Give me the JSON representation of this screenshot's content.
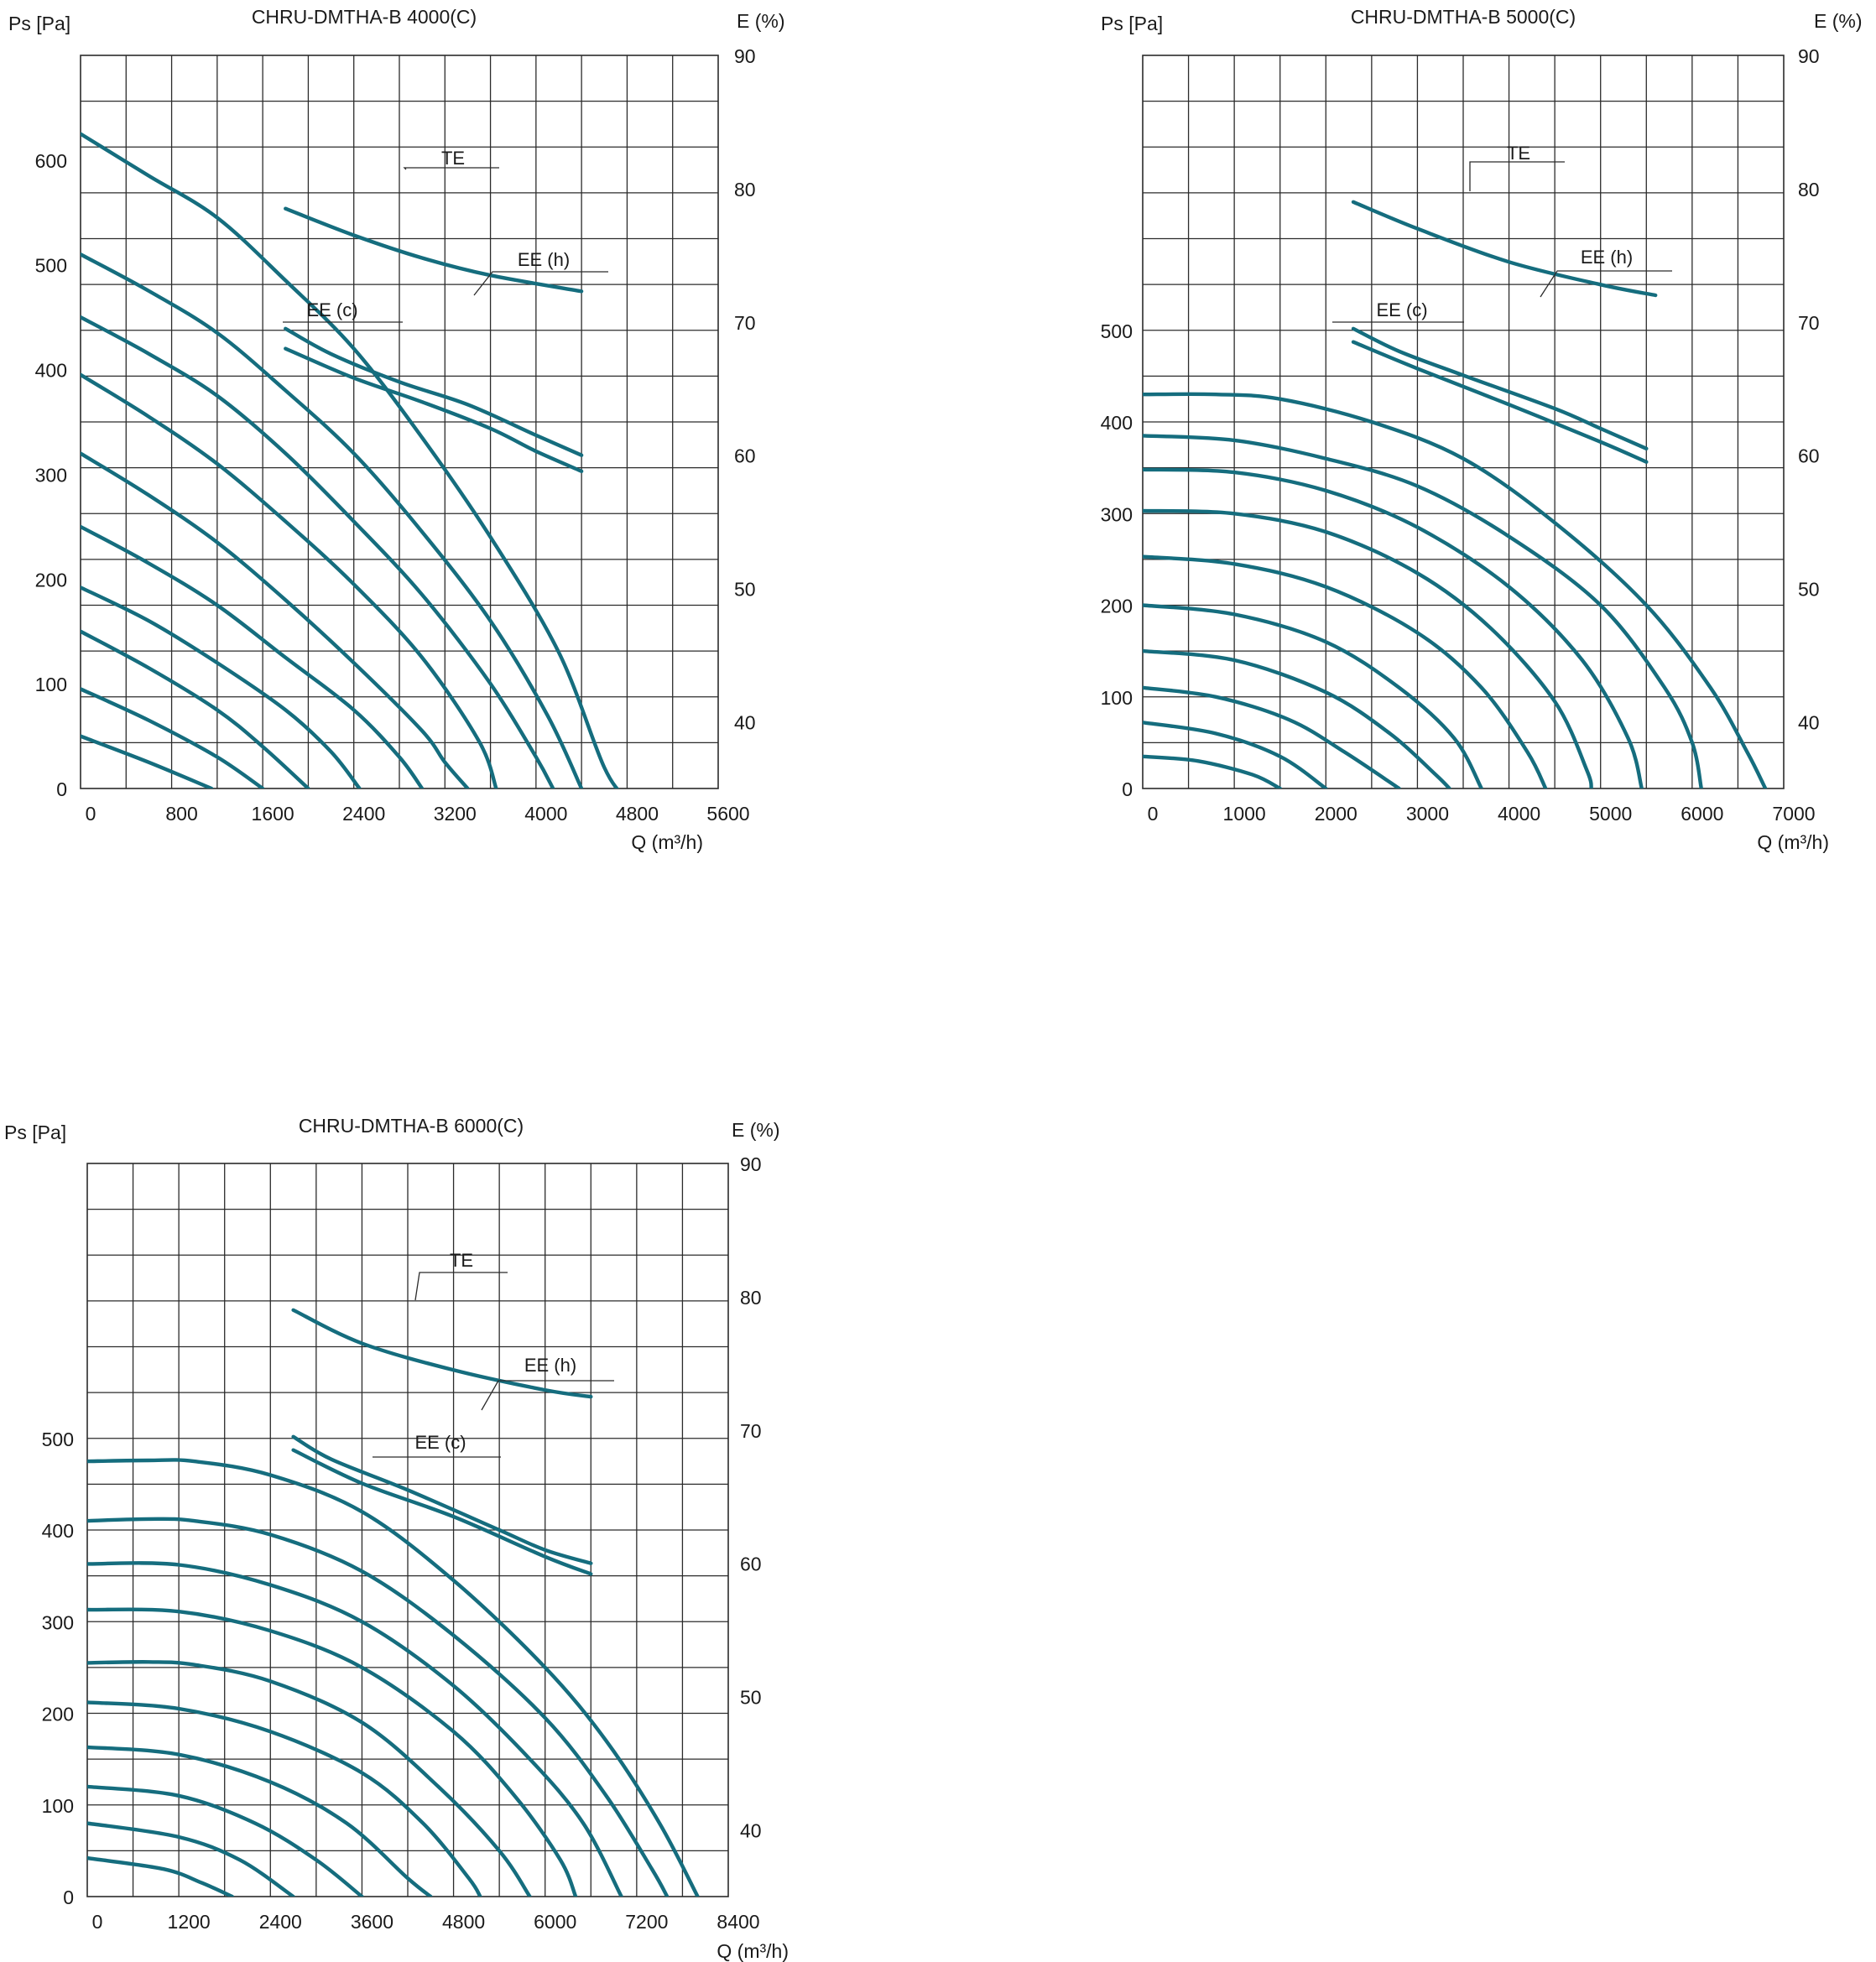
{
  "colors": {
    "curve": "#156d7e",
    "grid": "#2b2b2b",
    "text": "#1a1a1a"
  },
  "chart_data": [
    {
      "type": "line",
      "title": "CHRU-DMTHA-B 4000(C)",
      "ylabel": "Ps [Pa]",
      "y2label": "E (%)",
      "xlabel": "Q (m³/h)",
      "xlim": [
        0,
        5600
      ],
      "ylim": [
        0,
        700
      ],
      "y2lim": [
        35,
        90
      ],
      "xticks": [
        "0",
        "800",
        "1600",
        "2400",
        "3200",
        "4000",
        "4800",
        "5600"
      ],
      "yticks": [
        "0",
        "100",
        "200",
        "300",
        "400",
        "500",
        "600"
      ],
      "y2ticks": [
        "40",
        "50",
        "60",
        "70",
        "80",
        "90"
      ],
      "grid": true,
      "pressure_series": [
        [
          [
            0,
            625
          ],
          [
            600,
            585
          ],
          [
            1200,
            545
          ],
          [
            1800,
            485
          ],
          [
            2400,
            420
          ],
          [
            3000,
            335
          ],
          [
            3600,
            240
          ],
          [
            4200,
            130
          ],
          [
            4600,
            20
          ],
          [
            4800,
            -10
          ]
        ],
        [
          [
            0,
            510
          ],
          [
            600,
            475
          ],
          [
            1200,
            435
          ],
          [
            1800,
            380
          ],
          [
            2400,
            320
          ],
          [
            3000,
            245
          ],
          [
            3600,
            160
          ],
          [
            4100,
            70
          ],
          [
            4400,
            0
          ]
        ],
        [
          [
            0,
            450
          ],
          [
            600,
            415
          ],
          [
            1200,
            375
          ],
          [
            1800,
            320
          ],
          [
            2400,
            255
          ],
          [
            3000,
            185
          ],
          [
            3600,
            100
          ],
          [
            4000,
            30
          ],
          [
            4150,
            0
          ]
        ],
        [
          [
            0,
            395
          ],
          [
            600,
            355
          ],
          [
            1200,
            310
          ],
          [
            1800,
            255
          ],
          [
            2400,
            195
          ],
          [
            3000,
            125
          ],
          [
            3500,
            45
          ],
          [
            3650,
            0
          ]
        ],
        [
          [
            0,
            320
          ],
          [
            600,
            280
          ],
          [
            1200,
            235
          ],
          [
            1800,
            180
          ],
          [
            2400,
            120
          ],
          [
            3000,
            55
          ],
          [
            3200,
            25
          ],
          [
            3400,
            0
          ]
        ],
        [
          [
            0,
            250
          ],
          [
            600,
            215
          ],
          [
            1200,
            175
          ],
          [
            1800,
            125
          ],
          [
            2400,
            75
          ],
          [
            2800,
            30
          ],
          [
            3000,
            0
          ]
        ],
        [
          [
            0,
            192
          ],
          [
            600,
            160
          ],
          [
            1200,
            120
          ],
          [
            1800,
            75
          ],
          [
            2200,
            35
          ],
          [
            2450,
            0
          ]
        ],
        [
          [
            0,
            150
          ],
          [
            600,
            115
          ],
          [
            1200,
            75
          ],
          [
            1600,
            40
          ],
          [
            2000,
            0
          ]
        ],
        [
          [
            0,
            95
          ],
          [
            600,
            65
          ],
          [
            1200,
            30
          ],
          [
            1600,
            0
          ]
        ],
        [
          [
            0,
            50
          ],
          [
            600,
            25
          ],
          [
            1150,
            0
          ]
        ]
      ],
      "efficiency": {
        "TE": [
          [
            1800,
            78.5
          ],
          [
            2400,
            76.5
          ],
          [
            3000,
            74.8
          ],
          [
            3600,
            73.5
          ],
          [
            4400,
            72.3
          ]
        ],
        "EE (h)": [
          [
            1800,
            69.5
          ],
          [
            2200,
            67.6
          ],
          [
            2800,
            65.5
          ],
          [
            3400,
            63.8
          ],
          [
            4000,
            61.5
          ],
          [
            4400,
            60.0
          ]
        ],
        "EE (c)": [
          [
            1800,
            68.0
          ],
          [
            2400,
            65.8
          ],
          [
            3000,
            64.0
          ],
          [
            3600,
            62.0
          ],
          [
            4000,
            60.3
          ],
          [
            4400,
            58.8
          ]
        ]
      },
      "labels": [
        "TE",
        "EE (h)",
        "EE (c)"
      ]
    },
    {
      "type": "line",
      "title": "CHRU-DMTHA-B 5000(C)",
      "ylabel": "Ps [Pa]",
      "y2label": "E (%)",
      "xlabel": "Q (m³/h)",
      "xlim": [
        0,
        7000
      ],
      "ylim": [
        0,
        800
      ],
      "y2lim": [
        35,
        90
      ],
      "xticks": [
        "0",
        "1000",
        "2000",
        "3000",
        "4000",
        "5000",
        "6000",
        "7000"
      ],
      "yticks": [
        "0",
        "100",
        "200",
        "300",
        "400",
        "500"
      ],
      "y2ticks": [
        "40",
        "50",
        "60",
        "70",
        "80",
        "90"
      ],
      "grid": true,
      "pressure_series": [
        [
          [
            0,
            430
          ],
          [
            800,
            430
          ],
          [
            1500,
            425
          ],
          [
            2500,
            400
          ],
          [
            3500,
            360
          ],
          [
            4500,
            290
          ],
          [
            5500,
            200
          ],
          [
            6200,
            110
          ],
          [
            6600,
            40
          ],
          [
            6800,
            0
          ]
        ],
        [
          [
            0,
            385
          ],
          [
            1000,
            380
          ],
          [
            2000,
            360
          ],
          [
            3000,
            330
          ],
          [
            4000,
            275
          ],
          [
            5000,
            200
          ],
          [
            5700,
            110
          ],
          [
            6000,
            50
          ],
          [
            6100,
            0
          ]
        ],
        [
          [
            0,
            348
          ],
          [
            1000,
            345
          ],
          [
            2000,
            325
          ],
          [
            3000,
            285
          ],
          [
            4000,
            220
          ],
          [
            4800,
            140
          ],
          [
            5300,
            55
          ],
          [
            5450,
            0
          ]
        ],
        [
          [
            0,
            303
          ],
          [
            1000,
            300
          ],
          [
            2000,
            280
          ],
          [
            3000,
            235
          ],
          [
            3800,
            175
          ],
          [
            4500,
            95
          ],
          [
            4850,
            20
          ],
          [
            4900,
            0
          ]
        ],
        [
          [
            0,
            253
          ],
          [
            1000,
            245
          ],
          [
            2000,
            220
          ],
          [
            3000,
            170
          ],
          [
            3700,
            110
          ],
          [
            4200,
            40
          ],
          [
            4400,
            0
          ]
        ],
        [
          [
            0,
            200
          ],
          [
            1000,
            190
          ],
          [
            2000,
            160
          ],
          [
            2800,
            110
          ],
          [
            3400,
            55
          ],
          [
            3700,
            0
          ]
        ],
        [
          [
            0,
            150
          ],
          [
            1000,
            140
          ],
          [
            2000,
            105
          ],
          [
            2700,
            60
          ],
          [
            3200,
            15
          ],
          [
            3350,
            0
          ]
        ],
        [
          [
            0,
            110
          ],
          [
            800,
            100
          ],
          [
            1600,
            75
          ],
          [
            2200,
            40
          ],
          [
            2800,
            0
          ]
        ],
        [
          [
            0,
            72
          ],
          [
            800,
            60
          ],
          [
            1500,
            35
          ],
          [
            2000,
            0
          ]
        ],
        [
          [
            0,
            35
          ],
          [
            600,
            30
          ],
          [
            1200,
            15
          ],
          [
            1500,
            0
          ]
        ]
      ],
      "efficiency": {
        "TE": [
          [
            2300,
            79.0
          ],
          [
            3000,
            77.0
          ],
          [
            4000,
            74.5
          ],
          [
            5000,
            72.8
          ],
          [
            5600,
            72.0
          ]
        ],
        "EE (h)": [
          [
            2300,
            69.5
          ],
          [
            2800,
            67.8
          ],
          [
            3500,
            66.0
          ],
          [
            4500,
            63.5
          ],
          [
            5000,
            62.0
          ],
          [
            5500,
            60.5
          ]
        ],
        "EE (c)": [
          [
            2300,
            68.5
          ],
          [
            3000,
            66.5
          ],
          [
            4000,
            63.8
          ],
          [
            5000,
            61.0
          ],
          [
            5500,
            59.5
          ]
        ]
      },
      "labels": [
        "TE",
        "EE (h)",
        "EE (c)"
      ]
    },
    {
      "type": "line",
      "title": "CHRU-DMTHA-B 6000(C)",
      "ylabel": "Ps [Pa]",
      "y2label": "E (%)",
      "xlabel": "Q (m³/h)",
      "xlim": [
        0,
        8400
      ],
      "ylim": [
        0,
        800
      ],
      "y2lim": [
        35,
        90
      ],
      "xticks": [
        "0",
        "1200",
        "2400",
        "3600",
        "4800",
        "6000",
        "7200",
        "8400"
      ],
      "yticks": [
        "0",
        "100",
        "200",
        "300",
        "400",
        "500"
      ],
      "y2ticks": [
        "40",
        "50",
        "60",
        "70",
        "80",
        "90"
      ],
      "grid": true,
      "pressure_series": [
        [
          [
            0,
            475
          ],
          [
            800,
            476
          ],
          [
            1400,
            475
          ],
          [
            2400,
            460
          ],
          [
            3600,
            420
          ],
          [
            4800,
            345
          ],
          [
            6000,
            250
          ],
          [
            6800,
            170
          ],
          [
            7500,
            80
          ],
          [
            8000,
            0
          ]
        ],
        [
          [
            0,
            410
          ],
          [
            800,
            412
          ],
          [
            1400,
            410
          ],
          [
            2400,
            395
          ],
          [
            3600,
            355
          ],
          [
            4800,
            285
          ],
          [
            6000,
            195
          ],
          [
            6800,
            110
          ],
          [
            7400,
            30
          ],
          [
            7600,
            0
          ]
        ],
        [
          [
            0,
            363
          ],
          [
            1200,
            362
          ],
          [
            2400,
            340
          ],
          [
            3600,
            300
          ],
          [
            4800,
            230
          ],
          [
            5800,
            150
          ],
          [
            6500,
            80
          ],
          [
            7000,
            0
          ]
        ],
        [
          [
            0,
            313
          ],
          [
            1200,
            311
          ],
          [
            2400,
            290
          ],
          [
            3600,
            250
          ],
          [
            4800,
            180
          ],
          [
            5600,
            110
          ],
          [
            6200,
            40
          ],
          [
            6400,
            0
          ]
        ],
        [
          [
            0,
            255
          ],
          [
            800,
            256
          ],
          [
            1400,
            253
          ],
          [
            2400,
            235
          ],
          [
            3600,
            190
          ],
          [
            4600,
            120
          ],
          [
            5400,
            50
          ],
          [
            5800,
            0
          ]
        ],
        [
          [
            0,
            212
          ],
          [
            1200,
            205
          ],
          [
            2400,
            180
          ],
          [
            3600,
            135
          ],
          [
            4400,
            80
          ],
          [
            5000,
            20
          ],
          [
            5150,
            0
          ]
        ],
        [
          [
            0,
            163
          ],
          [
            1200,
            155
          ],
          [
            2400,
            125
          ],
          [
            3400,
            80
          ],
          [
            4200,
            20
          ],
          [
            4500,
            0
          ]
        ],
        [
          [
            0,
            120
          ],
          [
            1200,
            110
          ],
          [
            2200,
            80
          ],
          [
            3000,
            40
          ],
          [
            3600,
            0
          ]
        ],
        [
          [
            0,
            80
          ],
          [
            1200,
            65
          ],
          [
            2000,
            40
          ],
          [
            2700,
            0
          ]
        ],
        [
          [
            0,
            42
          ],
          [
            1000,
            30
          ],
          [
            1500,
            15
          ],
          [
            1900,
            0
          ]
        ]
      ],
      "efficiency": {
        "TE": [
          [
            2700,
            79.0
          ],
          [
            3600,
            76.5
          ],
          [
            4800,
            74.5
          ],
          [
            6000,
            73.0
          ],
          [
            6600,
            72.5
          ]
        ],
        "EE (h)": [
          [
            2700,
            69.5
          ],
          [
            3200,
            67.8
          ],
          [
            4200,
            65.5
          ],
          [
            5400,
            62.5
          ],
          [
            6000,
            61.0
          ],
          [
            6600,
            60.0
          ]
        ],
        "EE (c)": [
          [
            2700,
            68.5
          ],
          [
            3600,
            66.0
          ],
          [
            4800,
            63.5
          ],
          [
            6000,
            60.5
          ],
          [
            6600,
            59.2
          ]
        ]
      },
      "labels": [
        "TE",
        "EE (h)",
        "EE (c)"
      ]
    }
  ]
}
